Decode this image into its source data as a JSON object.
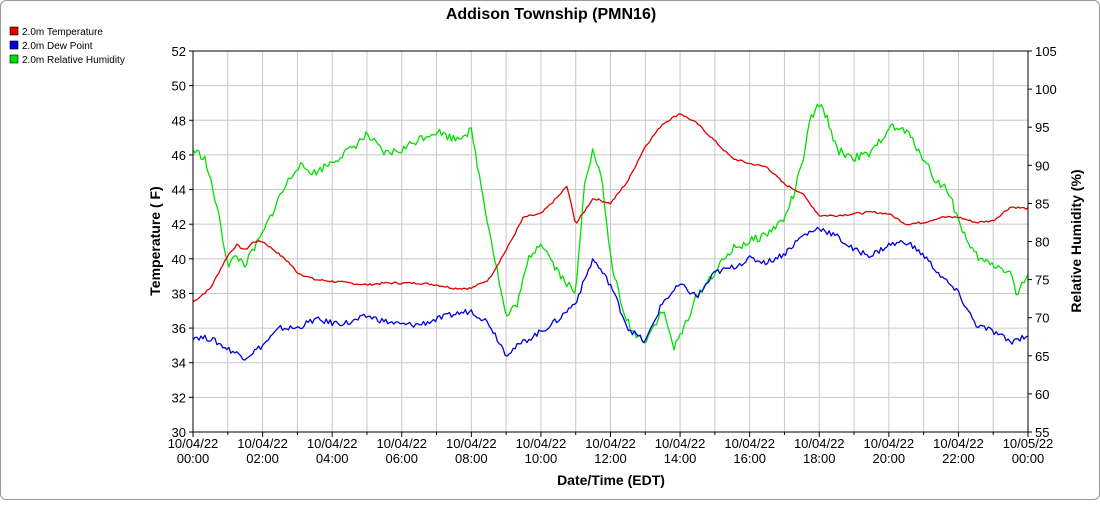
{
  "chart_data": {
    "type": "line",
    "title": "Addison Township (PMN16)",
    "xlabel": "Date/Time (EDT)",
    "ylabel_left": "Temperature ( F)",
    "ylabel_right": "Relative Humidity (%)",
    "ylim_left": [
      30,
      52
    ],
    "ylim_right": [
      55,
      105
    ],
    "yticks_left": [
      "30",
      "32",
      "34",
      "36",
      "38",
      "40",
      "42",
      "44",
      "46",
      "48",
      "50",
      "52"
    ],
    "yticks_right": [
      "55",
      "60",
      "65",
      "70",
      "75",
      "80",
      "85",
      "90",
      "95",
      "100",
      "105"
    ],
    "xticks": [
      {
        "date": "10/04/22",
        "time": "00:00"
      },
      {
        "date": "10/04/22",
        "time": "02:00"
      },
      {
        "date": "10/04/22",
        "time": "04:00"
      },
      {
        "date": "10/04/22",
        "time": "06:00"
      },
      {
        "date": "10/04/22",
        "time": "08:00"
      },
      {
        "date": "10/04/22",
        "time": "10:00"
      },
      {
        "date": "10/04/22",
        "time": "12:00"
      },
      {
        "date": "10/04/22",
        "time": "14:00"
      },
      {
        "date": "10/04/22",
        "time": "16:00"
      },
      {
        "date": "10/04/22",
        "time": "18:00"
      },
      {
        "date": "10/04/22",
        "time": "20:00"
      },
      {
        "date": "10/04/22",
        "time": "22:00"
      },
      {
        "date": "10/05/22",
        "time": "00:00"
      }
    ],
    "grid": true,
    "legend_position": "top-left",
    "series": [
      {
        "name": "2.0m Temperature",
        "color": "#e00000",
        "axis": "left",
        "x": [
          "00:00",
          "00:30",
          "01:00",
          "01:15",
          "01:30",
          "01:45",
          "02:00",
          "02:20",
          "02:45",
          "03:00",
          "03:30",
          "04:00",
          "04:30",
          "05:00",
          "05:30",
          "06:00",
          "06:30",
          "07:00",
          "07:30",
          "08:00",
          "08:30",
          "09:00",
          "09:30",
          "10:00",
          "10:30",
          "10:45",
          "11:00",
          "11:30",
          "12:00",
          "12:30",
          "13:00",
          "13:30",
          "14:00",
          "14:30",
          "15:00",
          "15:30",
          "16:00",
          "16:30",
          "17:00",
          "17:30",
          "18:00",
          "18:30",
          "19:00",
          "19:30",
          "20:00",
          "20:30",
          "21:00",
          "21:30",
          "22:00",
          "22:30",
          "23:00",
          "23:30",
          "24:00"
        ],
        "y": [
          37.5,
          38.3,
          40.2,
          40.8,
          40.5,
          41.0,
          41.0,
          40.5,
          39.8,
          39.2,
          38.8,
          38.7,
          38.6,
          38.5,
          38.6,
          38.6,
          38.6,
          38.5,
          38.3,
          38.3,
          38.8,
          40.5,
          42.4,
          42.6,
          43.6,
          44.2,
          42.0,
          43.5,
          43.2,
          44.5,
          46.5,
          47.8,
          48.4,
          47.8,
          46.8,
          45.8,
          45.5,
          45.3,
          44.3,
          43.8,
          42.5,
          42.5,
          42.6,
          42.7,
          42.6,
          42.0,
          42.1,
          42.4,
          42.4,
          42.1,
          42.2,
          43.0,
          42.9
        ]
      },
      {
        "name": "2.0m Dew Point",
        "color": "#0000e0",
        "axis": "left",
        "x": [
          "00:00",
          "00:30",
          "01:00",
          "01:30",
          "02:00",
          "02:30",
          "03:00",
          "03:30",
          "04:00",
          "04:30",
          "05:00",
          "05:30",
          "06:00",
          "06:30",
          "07:00",
          "07:30",
          "08:00",
          "08:30",
          "09:00",
          "09:30",
          "10:00",
          "10:30",
          "11:00",
          "11:30",
          "12:00",
          "12:30",
          "13:00",
          "13:30",
          "14:00",
          "14:30",
          "15:00",
          "15:30",
          "16:00",
          "16:30",
          "17:00",
          "17:30",
          "18:00",
          "18:30",
          "19:00",
          "19:30",
          "20:00",
          "20:30",
          "21:00",
          "21:30",
          "22:00",
          "22:30",
          "23:00",
          "23:30",
          "24:00"
        ],
        "y": [
          35.5,
          35.4,
          34.8,
          34.3,
          35.0,
          36.0,
          36.0,
          36.5,
          36.3,
          36.3,
          36.7,
          36.4,
          36.2,
          36.2,
          36.5,
          36.8,
          37.0,
          36.3,
          34.5,
          35.2,
          35.8,
          36.5,
          37.5,
          40.0,
          38.5,
          36.0,
          35.2,
          37.5,
          38.5,
          37.8,
          39.2,
          39.5,
          40.0,
          39.8,
          40.3,
          41.3,
          41.8,
          41.3,
          40.5,
          40.2,
          40.8,
          41.0,
          40.2,
          39.0,
          38.0,
          36.2,
          35.8,
          35.2,
          35.6
        ]
      },
      {
        "name": "2.0m Relative Humidity",
        "color": "#00e000",
        "axis": "right",
        "x": [
          "00:00",
          "00:20",
          "00:40",
          "01:00",
          "01:15",
          "01:30",
          "02:00",
          "02:30",
          "03:00",
          "03:30",
          "04:00",
          "04:30",
          "05:00",
          "05:30",
          "06:00",
          "06:30",
          "07:00",
          "07:30",
          "08:00",
          "08:20",
          "08:40",
          "09:00",
          "09:20",
          "09:40",
          "10:00",
          "10:30",
          "11:00",
          "11:15",
          "11:30",
          "11:45",
          "12:00",
          "12:20",
          "12:40",
          "13:00",
          "13:30",
          "13:50",
          "14:00",
          "14:30",
          "15:00",
          "15:30",
          "16:00",
          "16:30",
          "17:00",
          "17:15",
          "17:30",
          "17:45",
          "18:00",
          "18:15",
          "18:30",
          "19:00",
          "19:30",
          "20:00",
          "20:30",
          "21:00",
          "21:20",
          "21:40",
          "22:00",
          "22:20",
          "22:40",
          "23:00",
          "23:30",
          "23:40",
          "24:00"
        ],
        "y": [
          92.0,
          91.0,
          85.0,
          77.0,
          78.0,
          77.0,
          81.0,
          86.0,
          90.0,
          89.0,
          90.5,
          92.0,
          94.0,
          91.5,
          92.0,
          93.5,
          94.5,
          93.5,
          94.5,
          86.0,
          78.0,
          70.0,
          72.0,
          78.0,
          80.0,
          76.0,
          73.0,
          88.0,
          92.0,
          88.0,
          78.0,
          71.0,
          68.0,
          67.0,
          71.0,
          66.0,
          67.5,
          73.0,
          76.0,
          79.0,
          80.0,
          81.0,
          83.0,
          86.0,
          90.0,
          96.0,
          98.0,
          96.0,
          92.0,
          91.0,
          91.5,
          95.0,
          94.5,
          91.0,
          88.0,
          87.0,
          83.0,
          79.0,
          77.5,
          77.0,
          76.0,
          73.0,
          75.5
        ]
      }
    ]
  }
}
